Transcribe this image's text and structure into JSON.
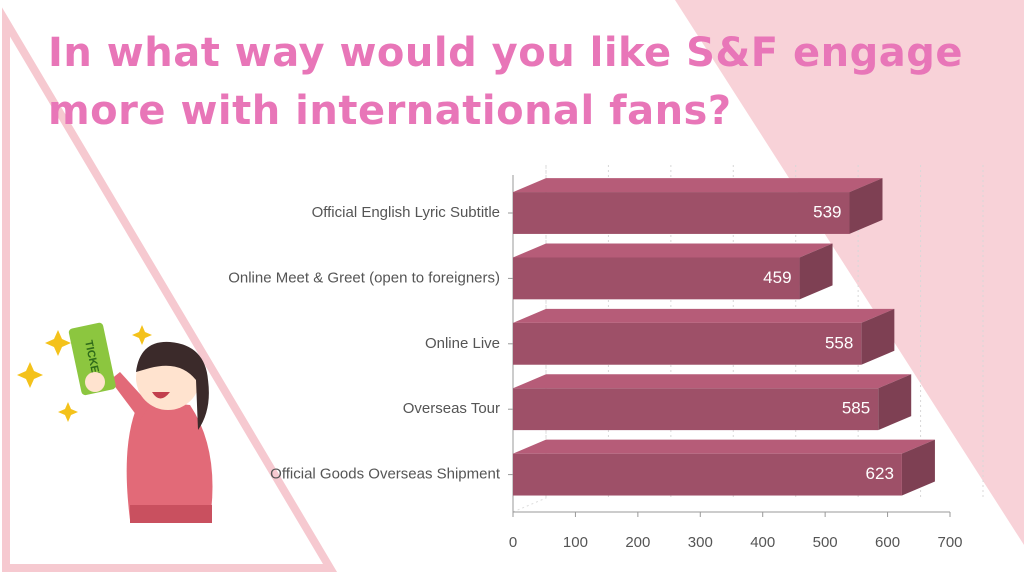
{
  "chart_data": {
    "type": "bar",
    "orientation": "horizontal",
    "title": "In what way would you like S&F engage more with international fans?",
    "categories": [
      "Official English Lyric Subtitle",
      "Online Meet & Greet (open to foreigners)",
      "Online Live",
      "Overseas Tour",
      "Official Goods Overseas Shipment"
    ],
    "values": [
      539,
      459,
      558,
      585,
      623
    ],
    "color": "#9e5068",
    "xlim": [
      0,
      700
    ],
    "xticks": [
      0,
      100,
      200,
      300,
      400,
      500,
      600,
      700
    ],
    "grid": true
  }
}
